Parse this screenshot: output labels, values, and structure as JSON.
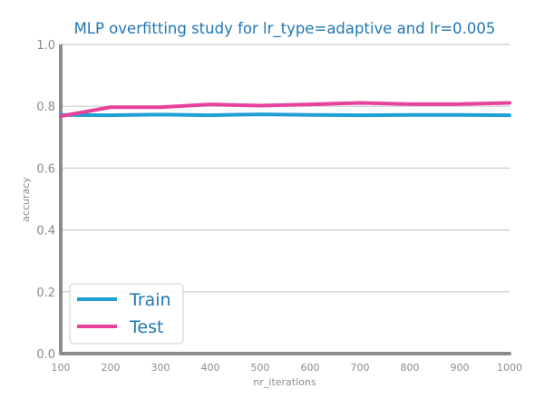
{
  "chart_data": {
    "type": "line",
    "title": "MLP overfitting study for lr_type=adaptive and lr=0.005",
    "xlabel": "nr_iterations",
    "ylabel": "accuracy",
    "x": [
      100,
      200,
      300,
      400,
      500,
      600,
      700,
      800,
      900,
      1000
    ],
    "xticks": [
      "100",
      "200",
      "300",
      "400",
      "500",
      "600",
      "700",
      "800",
      "900",
      "1000"
    ],
    "yticks": [
      "0.0",
      "0.2",
      "0.4",
      "0.6",
      "0.8",
      "1.0"
    ],
    "xlim": [
      100,
      1000
    ],
    "ylim": [
      0,
      1
    ],
    "grid": "horizontal",
    "legend_position": "lower-left",
    "series": [
      {
        "name": "Train",
        "color": "#1f9fd4",
        "values": [
          0.772,
          0.771,
          0.773,
          0.771,
          0.774,
          0.772,
          0.771,
          0.772,
          0.772,
          0.771
        ]
      },
      {
        "name": "Test",
        "color": "#e8419c",
        "values": [
          0.768,
          0.797,
          0.797,
          0.806,
          0.802,
          0.806,
          0.811,
          0.807,
          0.807,
          0.811
        ]
      }
    ]
  }
}
